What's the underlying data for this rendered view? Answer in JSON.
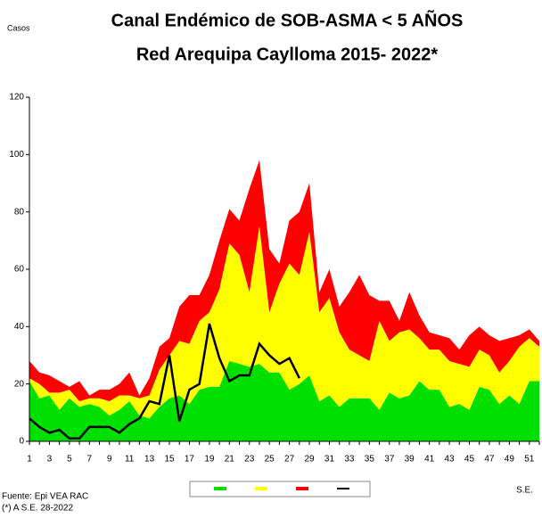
{
  "chart_data": {
    "type": "area",
    "title": "Canal Endémico de SOB-ASMA < 5 AÑOS",
    "subtitle": "Red Arequipa Caylloma 2015- 2022*",
    "y_label": "Casos",
    "x_label": "S.E.",
    "source": "Fuente: Epi VEA RAC",
    "note": "(*) A S.E. 28-2022",
    "categories": [
      1,
      null,
      3,
      null,
      5,
      null,
      7,
      null,
      9,
      null,
      11,
      null,
      13,
      null,
      15,
      null,
      17,
      null,
      19,
      null,
      21,
      null,
      23,
      null,
      25,
      null,
      27,
      null,
      29,
      null,
      31,
      null,
      33,
      null,
      35,
      null,
      37,
      null,
      39,
      null,
      41,
      null,
      43,
      null,
      45,
      null,
      47,
      null,
      49,
      null,
      51,
      null
    ],
    "series": [
      {
        "type": "area",
        "color": "#00e000",
        "values": [
          21,
          15,
          16,
          11,
          15,
          12,
          13,
          12,
          9,
          11,
          14,
          9,
          8,
          12,
          15,
          16,
          13,
          18,
          19,
          19,
          28,
          27,
          26,
          27,
          24,
          24,
          18,
          20,
          23,
          14,
          16,
          12,
          15,
          15,
          15,
          11,
          17,
          15,
          16,
          21,
          18,
          18,
          12,
          13,
          11,
          19,
          18,
          13,
          16,
          13,
          21,
          21
        ]
      },
      {
        "type": "area",
        "color": "#ffff00",
        "values": [
          1,
          5,
          1,
          6,
          3,
          2,
          2,
          3,
          5,
          5,
          2,
          6,
          8,
          13,
          15,
          19,
          21,
          24,
          26,
          34,
          41,
          38,
          26,
          48,
          21,
          31,
          44,
          38,
          50,
          31,
          34,
          26,
          17,
          15,
          13,
          31,
          18,
          23,
          23,
          15,
          14,
          14,
          16,
          14,
          15,
          13,
          12,
          11,
          12,
          20,
          15,
          12
        ]
      },
      {
        "type": "area",
        "color": "#ff0000",
        "values": [
          6,
          4,
          6,
          4,
          1,
          7,
          1,
          3,
          4,
          4,
          8,
          1,
          6,
          8,
          6,
          12,
          17,
          9,
          13,
          17,
          12,
          12,
          36,
          23,
          22,
          7,
          15,
          22,
          17,
          7,
          10,
          9,
          20,
          28,
          23,
          7,
          14,
          4,
          13,
          8,
          6,
          5,
          8,
          5,
          11,
          8,
          7,
          11,
          8,
          4,
          3,
          2
        ]
      },
      {
        "type": "line",
        "color": "#000000",
        "values": [
          8,
          5,
          3,
          4,
          1,
          1,
          5,
          5,
          5,
          3,
          6,
          8,
          14,
          13,
          30,
          7,
          18,
          20,
          41,
          29,
          21,
          23,
          23,
          34,
          30,
          27,
          29,
          22,
          null,
          null,
          null,
          null,
          null,
          null,
          null,
          null,
          null,
          null,
          null,
          null,
          null,
          null,
          null,
          null,
          null,
          null,
          null,
          null,
          null,
          null,
          null,
          null
        ]
      }
    ],
    "ylim": [
      0,
      120
    ],
    "yticks": [
      0,
      20,
      40,
      60,
      80,
      100,
      120
    ]
  }
}
